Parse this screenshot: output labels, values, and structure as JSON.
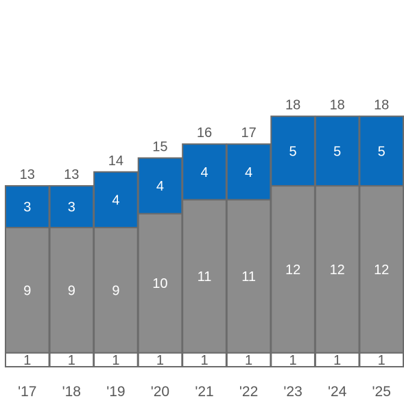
{
  "chart_data": {
    "type": "bar",
    "stacked": true,
    "categories": [
      "'17",
      "'18",
      "'19",
      "'20",
      "'21",
      "'22",
      "'23",
      "'24",
      "'25"
    ],
    "series": [
      {
        "values": [
          1,
          1,
          1,
          1,
          1,
          1,
          1,
          1,
          1
        ],
        "color": "#ffffff",
        "label_color": "#595959"
      },
      {
        "values": [
          9,
          9,
          9,
          10,
          11,
          11,
          12,
          12,
          12
        ],
        "color": "#8c8c8c",
        "label_color": "#ffffff"
      },
      {
        "values": [
          3,
          3,
          4,
          4,
          4,
          4,
          5,
          5,
          5
        ],
        "color": "#0a6cbd",
        "label_color": "#ffffff"
      }
    ],
    "totals": [
      13,
      13,
      14,
      15,
      16,
      17,
      18,
      18,
      18
    ],
    "title": "",
    "xlabel": "",
    "ylabel": "",
    "grid": false,
    "legend": "none",
    "colors": {
      "border": "#6b6b6b",
      "total_label": "#595959",
      "category_label": "#595959"
    }
  }
}
